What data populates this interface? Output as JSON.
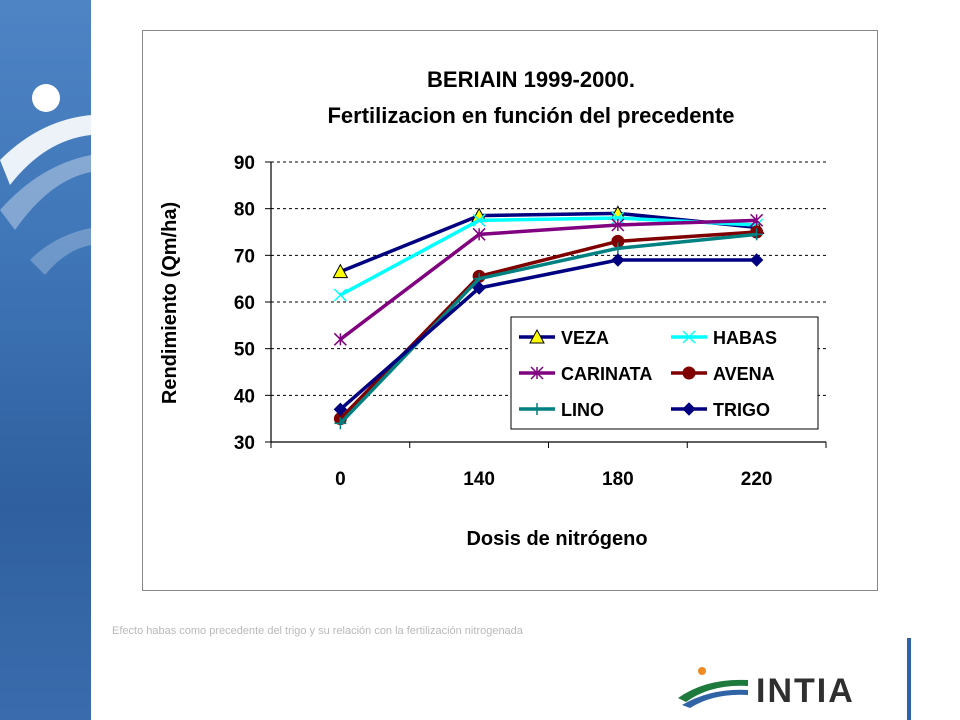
{
  "chart_data": {
    "type": "line",
    "title": "BERIAIN 1999-2000.",
    "subtitle": "Fertilizacion en función del precedente",
    "xlabel": "Dosis de nitrógeno",
    "ylabel": "Rendimiento (Qm/ha)",
    "categories": [
      "0",
      "140",
      "180",
      "220"
    ],
    "ylim": [
      30,
      90
    ],
    "yticks": [
      30,
      40,
      50,
      60,
      70,
      80,
      90
    ],
    "grid": "horizontal dashed",
    "legend_position": "bottom-right",
    "series": [
      {
        "name": "VEZA",
        "color": "#000080",
        "marker": "triangle-yellow",
        "values": [
          66.5,
          78.5,
          79,
          76
        ]
      },
      {
        "name": "HABAS",
        "color": "#00ffff",
        "marker": "x",
        "values": [
          61.5,
          77.5,
          78,
          76.5
        ]
      },
      {
        "name": "CARINATA",
        "color": "#800080",
        "marker": "star",
        "values": [
          52,
          74.5,
          76.5,
          77.5
        ]
      },
      {
        "name": "AVENA",
        "color": "#800000",
        "marker": "circle",
        "values": [
          35,
          65.5,
          73,
          75
        ]
      },
      {
        "name": "LINO",
        "color": "#008080",
        "marker": "plus",
        "values": [
          34,
          65,
          71.5,
          74.5
        ]
      },
      {
        "name": "TRIGO",
        "color": "#000080",
        "marker": "diamond",
        "values": [
          37,
          63,
          69,
          69
        ]
      }
    ]
  },
  "caption": "Efecto habas como precedente del trigo y su relación con la fertilización nitrogenada",
  "logo": {
    "text": "INTIA"
  }
}
